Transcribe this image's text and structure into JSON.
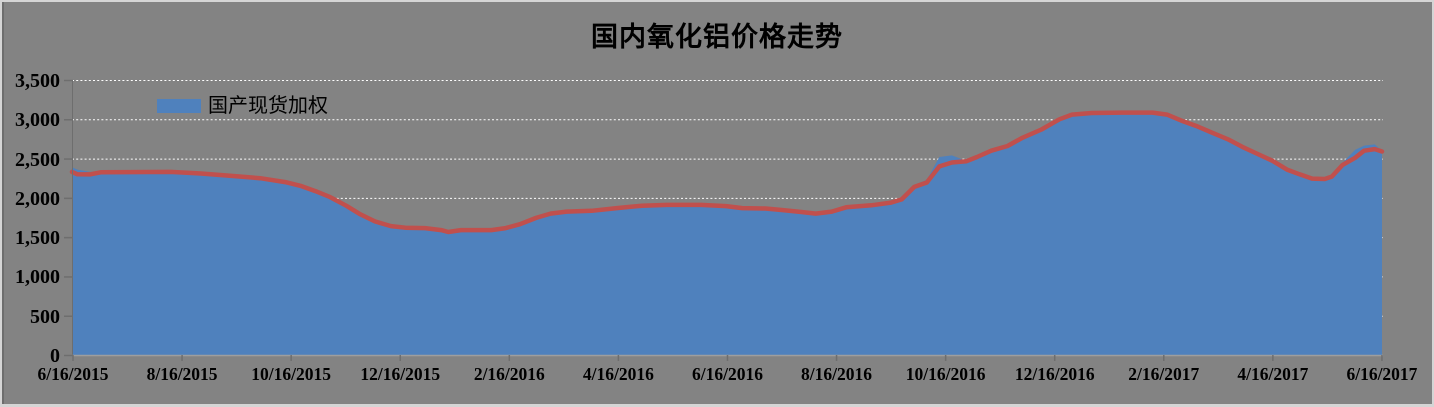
{
  "title": "国内氧化铝价格走势",
  "legend": {
    "label": "国产现货加权",
    "color": "#4F81BD"
  },
  "colors": {
    "background": "#838383",
    "frame": "#D5D5D5",
    "area_fill": "#4F81BD",
    "line": "#C0504D",
    "gridline": "#FFFFFF",
    "axis": "#6E6E6E",
    "x_axis_line": "#9E9E9E",
    "text": "#000000"
  },
  "y_axis": {
    "tick_labels": [
      "3,500",
      "3,000",
      "2,500",
      "2,000",
      "1,500",
      "1,000",
      "500",
      "0"
    ],
    "min": 0,
    "max": 3500,
    "step": 500
  },
  "x_axis": {
    "tick_labels": [
      "6/16/2015",
      "8/16/2015",
      "10/16/2015",
      "12/16/2015",
      "2/16/2016",
      "4/16/2016",
      "6/16/2016",
      "8/16/2016",
      "10/16/2016",
      "12/16/2016",
      "2/16/2017",
      "4/16/2017",
      "6/16/2017"
    ]
  },
  "chart_data": {
    "type": "area",
    "title": "国内氧化铝价格走势",
    "xlabel": "",
    "ylabel": "",
    "ylim": [
      0,
      3500
    ],
    "y_step": 500,
    "grid": "horizontal-dotted-white",
    "legend_position": "top-left-inside",
    "x": [
      "2015-06-16",
      "2015-06-19",
      "2015-06-26",
      "2015-07-02",
      "2015-08-10",
      "2015-08-27",
      "2015-09-13",
      "2015-09-29",
      "2015-10-13",
      "2015-10-22",
      "2015-10-30",
      "2015-11-07",
      "2015-11-16",
      "2015-11-24",
      "2015-12-02",
      "2015-12-11",
      "2015-12-19",
      "2015-12-30",
      "2016-01-08",
      "2016-01-12",
      "2016-01-19",
      "2016-02-05",
      "2016-02-13",
      "2016-02-21",
      "2016-03-01",
      "2016-03-09",
      "2016-03-18",
      "2016-04-01",
      "2016-04-15",
      "2016-04-29",
      "2016-05-13",
      "2016-06-01",
      "2016-06-15",
      "2016-06-24",
      "2016-07-07",
      "2016-07-16",
      "2016-07-27",
      "2016-08-04",
      "2016-08-13",
      "2016-08-21",
      "2016-09-04",
      "2016-09-15",
      "2016-09-21",
      "2016-09-28",
      "2016-10-05",
      "2016-10-12",
      "2016-10-19",
      "2016-10-27",
      "2016-11-02",
      "2016-11-10",
      "2016-11-19",
      "2016-11-27",
      "2016-12-08",
      "2016-12-18",
      "2016-12-25",
      "2017-01-05",
      "2017-01-22",
      "2017-02-08",
      "2017-02-16",
      "2017-02-25",
      "2017-03-05",
      "2017-03-13",
      "2017-03-22",
      "2017-03-30",
      "2017-04-07",
      "2017-04-16",
      "2017-04-24",
      "2017-05-01",
      "2017-05-08",
      "2017-05-15",
      "2017-05-19",
      "2017-05-25",
      "2017-06-01",
      "2017-06-06",
      "2017-06-12",
      "2017-06-16"
    ],
    "series": [
      {
        "name": "国产现货加权",
        "role": "area-fill",
        "color": "#4F81BD",
        "values": [
          2390,
          2360,
          2330,
          2330,
          2330,
          2310,
          2280,
          2250,
          2200,
          2150,
          2085,
          2010,
          1900,
          1790,
          1700,
          1640,
          1620,
          1615,
          1590,
          1565,
          1590,
          1590,
          1615,
          1665,
          1745,
          1800,
          1825,
          1835,
          1885,
          1910,
          1915,
          1910,
          1905,
          1880,
          1865,
          1855,
          1820,
          1800,
          1825,
          1880,
          1905,
          1940,
          1980,
          2160,
          2230,
          2520,
          2540,
          2470,
          2520,
          2600,
          2660,
          2760,
          2870,
          3000,
          3060,
          3080,
          3085,
          3085,
          3060,
          2975,
          2910,
          2830,
          2745,
          2650,
          2565,
          2470,
          2360,
          2300,
          2245,
          2240,
          2270,
          2450,
          2610,
          2665,
          2680,
          2600
        ]
      },
      {
        "name": "国产现货加权",
        "role": "outline-line",
        "color": "#C0504D",
        "values": [
          2330,
          2300,
          2298,
          2325,
          2330,
          2310,
          2280,
          2250,
          2200,
          2150,
          2085,
          2010,
          1900,
          1790,
          1700,
          1640,
          1620,
          1615,
          1590,
          1565,
          1590,
          1590,
          1615,
          1665,
          1745,
          1800,
          1825,
          1835,
          1870,
          1900,
          1910,
          1910,
          1895,
          1870,
          1865,
          1845,
          1820,
          1800,
          1825,
          1880,
          1905,
          1940,
          1980,
          2140,
          2195,
          2400,
          2450,
          2465,
          2520,
          2600,
          2660,
          2760,
          2870,
          3000,
          3060,
          3080,
          3085,
          3085,
          3060,
          2975,
          2910,
          2830,
          2745,
          2650,
          2565,
          2470,
          2360,
          2300,
          2245,
          2240,
          2270,
          2420,
          2510,
          2600,
          2620,
          2590
        ]
      }
    ]
  }
}
